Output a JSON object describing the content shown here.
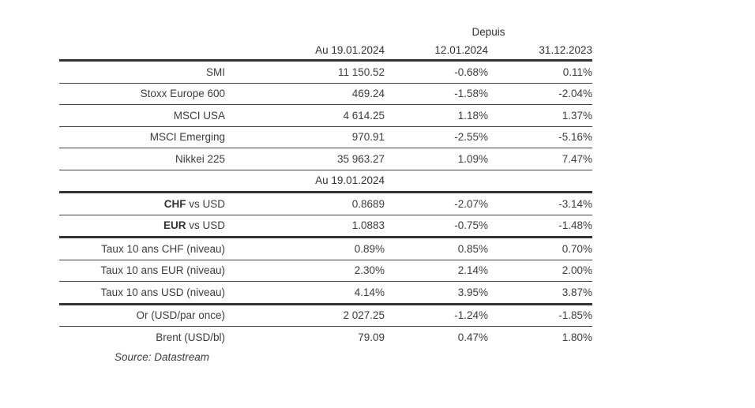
{
  "page": {
    "background": "#ffffff",
    "text_color": "#3d3d3d",
    "rule_color": "#363330"
  },
  "table": {
    "depuis_label": "Depuis",
    "col_headers": [
      "Au 19.01.2024",
      "12.01.2024",
      "31.12.2023"
    ],
    "section2_header": "Au 19.01.2024",
    "rows": [
      {
        "bold": "",
        "label": "SMI",
        "v1": "11 150.52",
        "v2": "-0.68%",
        "v3": "0.11%"
      },
      {
        "bold": "",
        "label": "Stoxx Europe 600",
        "v1": "469.24",
        "v2": "-1.58%",
        "v3": "-2.04%"
      },
      {
        "bold": "",
        "label": "MSCI USA",
        "v1": "4 614.25",
        "v2": "1.18%",
        "v3": "1.37%"
      },
      {
        "bold": "",
        "label": "MSCI Emerging",
        "v1": "970.91",
        "v2": "-2.55%",
        "v3": "-5.16%"
      },
      {
        "bold": "",
        "label": "Nikkei 225",
        "v1": "35 963.27",
        "v2": "1.09%",
        "v3": "7.47%"
      },
      {
        "bold": "CHF",
        "label": " vs USD",
        "v1": "0.8689",
        "v2": "-2.07%",
        "v3": "-3.14%"
      },
      {
        "bold": "EUR",
        "label": " vs USD",
        "v1": "1.0883",
        "v2": "-0.75%",
        "v3": "-1.48%"
      },
      {
        "bold": "",
        "label": "Taux 10 ans CHF (niveau)",
        "v1": "0.89%",
        "v2": "0.85%",
        "v3": "0.70%"
      },
      {
        "bold": "",
        "label": "Taux 10 ans EUR (niveau)",
        "v1": "2.30%",
        "v2": "2.14%",
        "v3": "2.00%"
      },
      {
        "bold": "",
        "label": "Taux 10 ans USD (niveau)",
        "v1": "4.14%",
        "v2": "3.95%",
        "v3": "3.87%"
      },
      {
        "bold": "",
        "label": "Or (USD/par once)",
        "v1": "2 027.25",
        "v2": "-1.24%",
        "v3": "-1.85%"
      },
      {
        "bold": "",
        "label": "Brent (USD/bl)",
        "v1": "79.09",
        "v2": "0.47%",
        "v3": "1.80%"
      }
    ],
    "source_note": "Source: Datastream"
  }
}
